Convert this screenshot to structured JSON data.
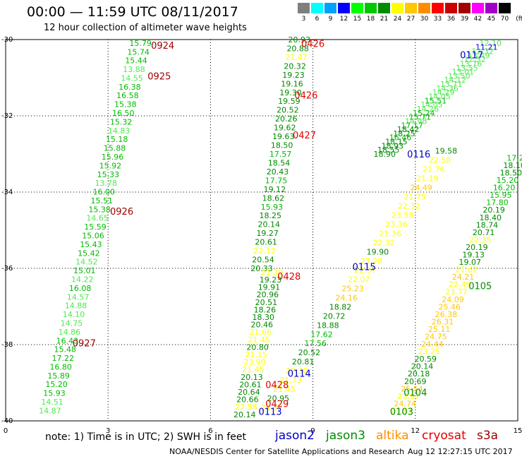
{
  "header": {
    "title": "00:00  —  11:59 UTC 08/11/2017",
    "subtitle": "12 hour collection of altimeter wave heights"
  },
  "scale": {
    "labels": [
      "3",
      "6",
      "9",
      "12",
      "15",
      "18",
      "21",
      "24",
      "27",
      "30",
      "33",
      "36",
      "39",
      "42",
      "45",
      "70",
      "(ft)"
    ],
    "colors": [
      "#7f7f7f",
      "#00ffff",
      "#00a0ff",
      "#0000ff",
      "#00ff00",
      "#00c800",
      "#008c00",
      "#ffff00",
      "#ffc800",
      "#ff8c00",
      "#ff0000",
      "#c80000",
      "#a00000",
      "#ff00ff",
      "#a000c8",
      "#000000"
    ]
  },
  "footer": {
    "note": "note:  1) Time is in UTC;  2) SWH is in feet",
    "legend": [
      {
        "name": "jason2",
        "color": "#0000c8"
      },
      {
        "name": "jason3",
        "color": "#008c00"
      },
      {
        "name": "altika",
        "color": "#ff8c00"
      },
      {
        "name": "cryosat",
        "color": "#e00000"
      },
      {
        "name": "s3a",
        "color": "#a00000"
      }
    ],
    "credit": "NOAA/NESDIS Center for Satellite Applications and Research",
    "stamp": "Aug 12 12:27:15 UTC 2017"
  },
  "chart_data": {
    "type": "scatter",
    "title": "00:00  —  11:59 UTC 08/11/2017",
    "subtitle": "12 hour collection of altimeter wave heights",
    "xlabel": "",
    "ylabel": "",
    "xlim": [
      0,
      15
    ],
    "ylim": [
      -40,
      -30
    ],
    "x_ticks": [
      "0",
      "3",
      "6",
      "9",
      "12",
      "15"
    ],
    "y_ticks": [
      "-30",
      "-32",
      "-34",
      "-36",
      "-38",
      "-40"
    ],
    "grid": true,
    "tracks": [
      {
        "id": "A",
        "x0": 3.95,
        "y0": -30.09,
        "x1": 1.3,
        "y1": -39.73,
        "values": [
          15.79,
          15.74,
          15.44,
          13.88,
          14.55,
          16.38,
          16.58,
          15.38,
          16.5,
          15.32,
          14.83,
          15.18,
          15.88,
          15.96,
          15.92,
          15.33,
          13.78,
          16.0,
          15.51,
          15.38,
          14.65,
          15.59,
          15.06,
          15.43,
          15.42,
          14.52,
          15.01,
          14.22,
          16.08,
          14.57,
          14.88,
          14.1,
          14.75,
          14.86,
          16.43,
          15.48,
          17.22,
          16.8,
          15.89,
          15.2,
          15.93,
          14.51,
          14.87
        ]
      },
      {
        "id": "B",
        "x0": 8.6,
        "y0": -30.0,
        "x1": 7.5,
        "y1": -36.0,
        "values": [
          20.93,
          20.88,
          21.47,
          20.32,
          19.23,
          19.16,
          19.3,
          19.59,
          20.52,
          20.26,
          19.62,
          19.63,
          18.5,
          17.57,
          18.54,
          20.43,
          17.75,
          19.12,
          18.62,
          15.93,
          18.25,
          20.14,
          19.27,
          20.61,
          22.12,
          20.54,
          20.33
        ]
      },
      {
        "id": "C",
        "x0": 7.8,
        "y0": -36.1,
        "x1": 7.0,
        "y1": -39.83,
        "values": [
          21.39,
          19.23,
          19.91,
          20.96,
          20.51,
          18.26,
          18.3,
          20.46,
          21.66,
          21.45,
          20.8,
          21.15,
          23.9,
          21.45,
          20.13,
          20.61,
          20.64,
          20.66,
          22.58,
          20.14
        ]
      },
      {
        "id": "D",
        "x0": 12.9,
        "y0": -32.92,
        "x1": 7.8,
        "y1": -39.65,
        "values": [
          19.58,
          22.58,
          21.76,
          21.19,
          24.49,
          21.75,
          22.32,
          23.58,
          23.36,
          21.36,
          22.32,
          19.9,
          23.28,
          22.37,
          22.07,
          25.23,
          24.16,
          18.82,
          20.72,
          18.88,
          17.62,
          17.56,
          20.52,
          20.81,
          22.3,
          21.73,
          21.45,
          20.95,
          21.37
        ]
      },
      {
        "id": "E",
        "x0": 14.2,
        "y0": -30.09,
        "x1": 11.1,
        "y1": -33.0,
        "values": [
          12.1,
          11.21,
          12.32,
          13.49,
          12.52,
          13.76,
          13.55,
          13.01,
          13.5,
          14.12,
          13.71,
          14.36,
          14.29,
          14.05,
          15.51,
          14.05,
          14.26,
          15.24,
          15.71,
          14.98,
          17.17,
          18.42,
          18.25,
          16.46,
          18.15,
          18.93,
          18.55,
          18.9
        ]
      },
      {
        "id": "F",
        "x0": 15.0,
        "y0": -33.1,
        "x1": 11.6,
        "y1": -39.74,
        "values": [
          17.2,
          18.1,
          18.5,
          15.2,
          16.2,
          15.95,
          17.8,
          20.19,
          18.4,
          18.74,
          20.71,
          22.35,
          20.19,
          19.13,
          19.07,
          21.62,
          24.21,
          22.49,
          23.77,
          24.09,
          25.46,
          26.38,
          26.31,
          25.11,
          24.75,
          24.44,
          23.25,
          20.59,
          20.14,
          20.18,
          20.69,
          25.54,
          23.97,
          24.74,
          23.57
        ]
      }
    ],
    "pass_labels": [
      {
        "text": "0924",
        "x": 4.6,
        "y": -30.15,
        "series": "s3a"
      },
      {
        "text": "0925",
        "x": 4.5,
        "y": -30.95,
        "series": "s3a"
      },
      {
        "text": "0926",
        "x": 3.4,
        "y": -34.5,
        "series": "s3a"
      },
      {
        "text": "0927",
        "x": 2.3,
        "y": -37.95,
        "series": "s3a"
      },
      {
        "text": "0426",
        "x": 9.0,
        "y": -30.1,
        "series": "cryosat"
      },
      {
        "text": "0426",
        "x": 8.8,
        "y": -31.45,
        "series": "cryosat"
      },
      {
        "text": "0427",
        "x": 8.75,
        "y": -32.5,
        "series": "cryosat"
      },
      {
        "text": "0428",
        "x": 8.3,
        "y": -36.2,
        "series": "cryosat"
      },
      {
        "text": "0428",
        "x": 7.95,
        "y": -39.05,
        "series": "cryosat"
      },
      {
        "text": "0429",
        "x": 7.95,
        "y": -39.55,
        "series": "cryosat"
      },
      {
        "text": "0117",
        "x": 13.65,
        "y": -30.4,
        "series": "jason2"
      },
      {
        "text": "0116",
        "x": 12.1,
        "y": -33.0,
        "series": "jason2"
      },
      {
        "text": "0115",
        "x": 10.5,
        "y": -35.95,
        "series": "jason2"
      },
      {
        "text": "0114",
        "x": 8.6,
        "y": -38.75,
        "series": "jason2"
      },
      {
        "text": "0113",
        "x": 7.75,
        "y": -39.75,
        "series": "jason2"
      },
      {
        "text": "0105",
        "x": 13.9,
        "y": -36.45,
        "series": "jason3"
      },
      {
        "text": "0104",
        "x": 12.0,
        "y": -39.25,
        "series": "jason3"
      },
      {
        "text": "0103",
        "x": 11.6,
        "y": -39.75,
        "series": "jason3"
      }
    ]
  }
}
